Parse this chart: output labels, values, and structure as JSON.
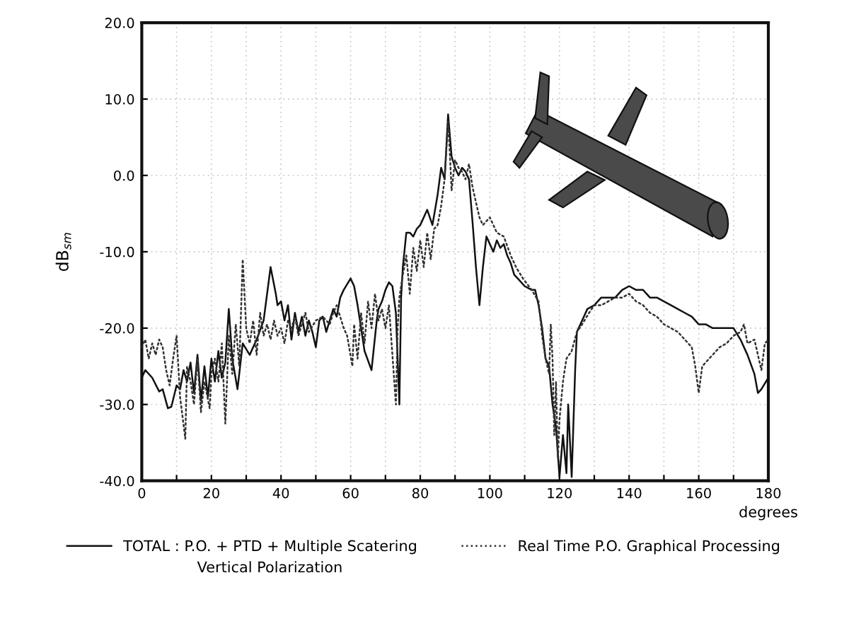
{
  "chart_data": {
    "type": "line",
    "xlabel": "degrees",
    "ylabel": "dB$_{sm}$",
    "xlim": [
      0,
      180
    ],
    "ylim": [
      -40,
      20
    ],
    "xticks": [
      0,
      {
        "value": 10,
        "label": null
      },
      20,
      {
        "value": 30,
        "label": null
      },
      40,
      {
        "value": 50,
        "label": null
      },
      60,
      {
        "value": 70,
        "label": null
      },
      80,
      {
        "value": 90,
        "label": null
      },
      100,
      {
        "value": 110,
        "label": null
      },
      120,
      {
        "value": 130,
        "label": null
      },
      140,
      {
        "value": 150,
        "label": null
      },
      160,
      {
        "value": 170,
        "label": null
      },
      180
    ],
    "yticks": [
      {
        "value": -40,
        "label": "-40.0"
      },
      {
        "value": -30,
        "label": "-30.0"
      },
      {
        "value": -20,
        "label": "-20.0"
      },
      {
        "value": -10,
        "label": "-10.0"
      },
      {
        "value": 0,
        "label": "0.0"
      },
      {
        "value": 10,
        "label": "10.0"
      },
      {
        "value": 20,
        "label": "20.0"
      }
    ],
    "grid": true,
    "legend": "bottom",
    "annotations": [
      "Vertical Polarization"
    ],
    "series": [
      {
        "name": "TOTAL : P.O. + PTD + Multiple Scatering",
        "color": "#111111",
        "line_style": "solid",
        "x": [
          0,
          1,
          3,
          5,
          6,
          7.5,
          8.5,
          10,
          11,
          12,
          13,
          14,
          15,
          16,
          17,
          18,
          19,
          20,
          21,
          22,
          23,
          24,
          25,
          26,
          27.5,
          29,
          31,
          33,
          35,
          37,
          38.5,
          39,
          40,
          41,
          42,
          43,
          44,
          45,
          46,
          47,
          48,
          49,
          50,
          51,
          52,
          53,
          55,
          56,
          57,
          58,
          60,
          61,
          62,
          63,
          64,
          66,
          67.5,
          68,
          69,
          70,
          71,
          72,
          73,
          74,
          74.5,
          75,
          76,
          77,
          78,
          79,
          80,
          82,
          83.5,
          85,
          86,
          87,
          88,
          89,
          90,
          91,
          92,
          93,
          94,
          95,
          96,
          97,
          98,
          99,
          100,
          101,
          102,
          103,
          104,
          105,
          106,
          107,
          108,
          110,
          112,
          113,
          114,
          115,
          116,
          117,
          118,
          119,
          120,
          121,
          122,
          122.5,
          123.5,
          124.5,
          125,
          126,
          127,
          128,
          130,
          132,
          134,
          136,
          138,
          140,
          142,
          144,
          146,
          148,
          150,
          152,
          154,
          156,
          158,
          160,
          162,
          164,
          166,
          168,
          170,
          172,
          174,
          176,
          177,
          178,
          180
        ],
        "values": [
          -26.5,
          -25.5,
          -26.5,
          -28.3,
          -28.0,
          -30.5,
          -30.3,
          -27.5,
          -28.0,
          -25.5,
          -27.0,
          -24.5,
          -28.5,
          -23.5,
          -29.5,
          -25.0,
          -29.0,
          -24.0,
          -27.0,
          -23.0,
          -26.5,
          -24.5,
          -17.5,
          -24.0,
          -28.0,
          -22.0,
          -23.5,
          -21.5,
          -19.0,
          -12.0,
          -15.5,
          -17.0,
          -16.5,
          -19.0,
          -17.0,
          -21.5,
          -18.0,
          -20.5,
          -18.5,
          -21.0,
          -19.0,
          -20.5,
          -22.5,
          -19.0,
          -18.5,
          -20.5,
          -17.5,
          -18.5,
          -16.0,
          -15.0,
          -13.5,
          -14.5,
          -17.0,
          -20.0,
          -23.0,
          -25.5,
          -19.0,
          -17.5,
          -16.5,
          -15.0,
          -14.0,
          -14.5,
          -18.0,
          -30.0,
          -16.0,
          -12.0,
          -7.5,
          -7.5,
          -8.0,
          -7.0,
          -6.5,
          -4.5,
          -6.5,
          -2.5,
          1.0,
          -0.5,
          8.0,
          2.5,
          1.0,
          0.0,
          1.0,
          0.5,
          -0.5,
          -6.0,
          -12.0,
          -17.0,
          -12.0,
          -8.0,
          -9.0,
          -10.0,
          -8.5,
          -9.5,
          -9.0,
          -10.5,
          -11.5,
          -13.0,
          -13.5,
          -14.5,
          -15.0,
          -15.0,
          -17.0,
          -20.0,
          -24.0,
          -25.0,
          -30.0,
          -33.0,
          -39.5,
          -34.0,
          -39.0,
          -30.0,
          -39.5,
          -25.5,
          -20.5,
          -19.5,
          -18.5,
          -17.5,
          -17.0,
          -16.0,
          -16.0,
          -16.0,
          -15.0,
          -14.5,
          -15.0,
          -15.0,
          -16.0,
          -16.0,
          -16.5,
          -17.0,
          -17.5,
          -18.0,
          -18.5,
          -19.5,
          -19.5,
          -20.0,
          -20.0,
          -20.0,
          -20.0,
          -21.5,
          -23.5,
          -26.0,
          -28.5,
          -28.0,
          -26.5
        ]
      },
      {
        "name": "Real Time P.O. Graphical Processing",
        "color": "#333333",
        "line_style": "dotted",
        "x": [
          0,
          1,
          2,
          3,
          4,
          5,
          6,
          7,
          8,
          9,
          10,
          11,
          12.5,
          13,
          14,
          15,
          16,
          17,
          18,
          19.5,
          20,
          21,
          22,
          23,
          24,
          25,
          26,
          27,
          28,
          29,
          30,
          31,
          32,
          33,
          34,
          35,
          36,
          37,
          38,
          39,
          40,
          41,
          42,
          43,
          44,
          45,
          46,
          47,
          48,
          50,
          52,
          54,
          55,
          56,
          57,
          58,
          59,
          60.5,
          61,
          62,
          63,
          64,
          65,
          66,
          67,
          68,
          69,
          70,
          71,
          72,
          73,
          73.5,
          74,
          75,
          76,
          77,
          78,
          79,
          80,
          81,
          82,
          83,
          84,
          85,
          86,
          87,
          88,
          88.5,
          89,
          90,
          91,
          92,
          93,
          94,
          95,
          96,
          97,
          98,
          99,
          100,
          102,
          104,
          106,
          107.5,
          109.5,
          112,
          114,
          115,
          116,
          117,
          117.5,
          118,
          118.5,
          119,
          119.5,
          120,
          121,
          122,
          123.5,
          125,
          126.5,
          128.5,
          130,
          132,
          134,
          136,
          138,
          140,
          142,
          144,
          146,
          148,
          150,
          152,
          154,
          156,
          158,
          159,
          160,
          161,
          162,
          164,
          166,
          168,
          170,
          172,
          173,
          174,
          176,
          178,
          179,
          180
        ],
        "values": [
          -22.5,
          -21.5,
          -24.0,
          -22.0,
          -23.5,
          -21.5,
          -22.5,
          -25.5,
          -27.5,
          -24.0,
          -21.0,
          -29.0,
          -34.5,
          -25.0,
          -27.0,
          -30.0,
          -24.0,
          -31.0,
          -27.0,
          -30.5,
          -26.0,
          -24.0,
          -27.0,
          -22.0,
          -32.5,
          -21.0,
          -26.0,
          -19.5,
          -25.0,
          -11.0,
          -20.0,
          -22.0,
          -19.0,
          -23.5,
          -18.0,
          -21.0,
          -19.5,
          -21.5,
          -19.0,
          -21.0,
          -20.0,
          -22.0,
          -19.0,
          -20.0,
          -18.5,
          -21.0,
          -19.5,
          -18.0,
          -20.5,
          -19.0,
          -18.5,
          -19.5,
          -18.0,
          -17.0,
          -18.5,
          -20.0,
          -21.0,
          -25.0,
          -19.5,
          -24.0,
          -18.0,
          -22.0,
          -16.5,
          -20.0,
          -15.5,
          -19.0,
          -17.5,
          -20.0,
          -17.0,
          -23.5,
          -30.0,
          -20.0,
          -16.0,
          -13.0,
          -10.5,
          -15.5,
          -9.5,
          -12.5,
          -8.5,
          -12.0,
          -7.5,
          -11.0,
          -7.0,
          -6.5,
          -4.0,
          -0.5,
          7.0,
          3.0,
          -2.0,
          2.0,
          1.0,
          0.5,
          -0.5,
          1.5,
          -1.5,
          -3.5,
          -5.5,
          -6.5,
          -6.0,
          -5.5,
          -7.5,
          -8.0,
          -10.5,
          -12.0,
          -13.5,
          -15.0,
          -16.5,
          -21.0,
          -24.0,
          -26.0,
          -19.5,
          -24.0,
          -34.0,
          -27.0,
          -37.0,
          -32.0,
          -27.0,
          -24.0,
          -23.0,
          -20.5,
          -19.5,
          -18.0,
          -17.0,
          -17.0,
          -16.5,
          -16.0,
          -16.0,
          -15.5,
          -16.5,
          -17.0,
          -18.0,
          -18.5,
          -19.5,
          -20.0,
          -20.5,
          -21.5,
          -22.5,
          -25.0,
          -28.5,
          -25.0,
          -24.5,
          -23.5,
          -22.5,
          -22.0,
          -21.0,
          -20.5,
          -19.5,
          -22.0,
          -21.5,
          -25.5,
          -22.0,
          -21.5
        ]
      }
    ]
  }
}
